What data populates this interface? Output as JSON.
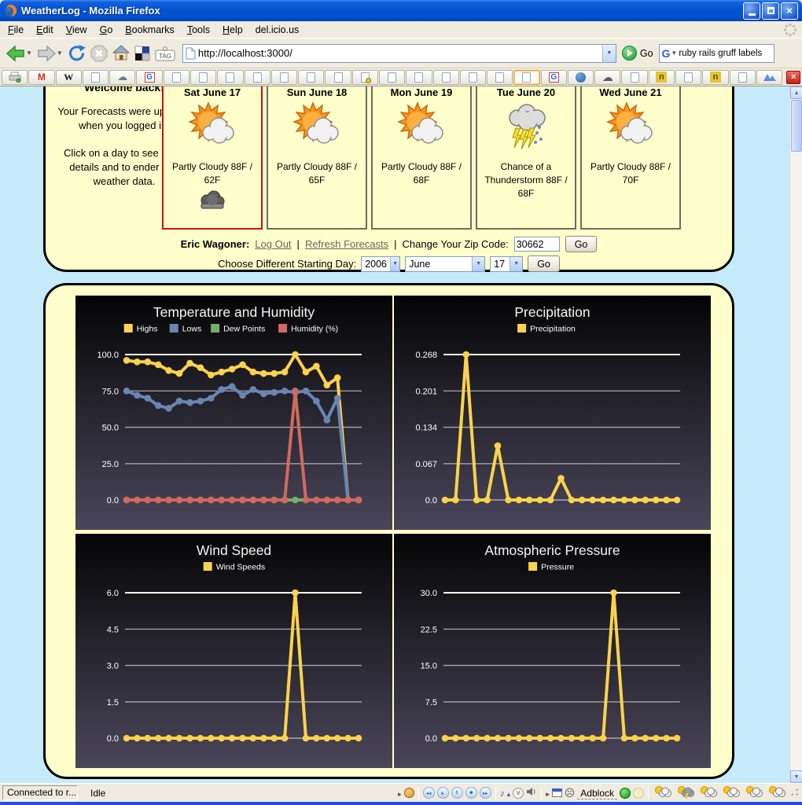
{
  "window": {
    "title": "WeatherLog - Mozilla Firefox"
  },
  "menu_bar": {
    "items": [
      "File",
      "Edit",
      "View",
      "Go",
      "Bookmarks",
      "Tools",
      "Help",
      "del.icio.us"
    ]
  },
  "nav_toolbar": {
    "url": "http://localhost:3000/",
    "go_label": "Go",
    "search_value": "ruby rails gruff labels",
    "tag_label": "TAG"
  },
  "bookmarks_bar": {
    "items": [
      "print",
      "gmail",
      "wikipedia",
      "page",
      "cloud",
      "google",
      "page",
      "page",
      "page",
      "page",
      "page",
      "page",
      "page",
      "page-key",
      "page",
      "page",
      "page",
      "page",
      "page",
      "page-active",
      "google",
      "drupal",
      "cloud-dark",
      "page",
      "n-badge",
      "page",
      "n-badge",
      "page",
      "mountains",
      "close"
    ]
  },
  "content": {
    "sidebar_note": {
      "heading": "Welcome back!",
      "p1": "Your Forecasts were updated when you logged in.",
      "p2": "Click on a day to see more details and to ender real weather data."
    },
    "forecast_cards": [
      {
        "day": "Sat June 17",
        "desc": "Partly Cloudy 88F / 62F",
        "icon": "partly-cloudy",
        "selected": true,
        "has_data_icon": true
      },
      {
        "day": "Sun June 18",
        "desc": "Partly Cloudy 88F / 65F",
        "icon": "partly-cloudy",
        "selected": false,
        "has_data_icon": false
      },
      {
        "day": "Mon June 19",
        "desc": "Partly Cloudy 88F / 68F",
        "icon": "partly-cloudy",
        "selected": false,
        "has_data_icon": false
      },
      {
        "day": "Tue June 20",
        "desc": "Chance of a Thunderstorm 88F / 68F",
        "icon": "thunderstorm",
        "selected": false,
        "has_data_icon": false
      },
      {
        "day": "Wed June 21",
        "desc": "Partly Cloudy 88F / 70F",
        "icon": "partly-cloudy",
        "selected": false,
        "has_data_icon": false
      }
    ],
    "user_row": {
      "name": "Eric Wagoner:",
      "logout": "Log Out",
      "sep": "|",
      "refresh": "Refresh Forecasts",
      "zip_label": "Change Your Zip Code:",
      "zip_value": "30662",
      "go": "Go"
    },
    "date_row": {
      "label": "Choose Different Starting Day:",
      "year": "2006",
      "month": "June",
      "day": "17",
      "go": "Go"
    }
  },
  "chart_data": [
    {
      "id": "temperature-humidity",
      "type": "line",
      "title": "Temperature and Humidity",
      "ylim": [
        0,
        100
      ],
      "yticks": [
        0,
        25,
        50,
        75,
        100
      ],
      "ytick_labels": [
        "0.0",
        "25.0",
        "50.0",
        "75.0",
        "100.0"
      ],
      "grid": true,
      "legend_position": "top",
      "series": [
        {
          "name": "Highs",
          "color": "#FBD24D",
          "values": [
            96,
            95,
            95,
            93,
            89,
            87,
            94,
            91,
            86,
            88,
            90,
            93,
            88,
            87,
            87,
            88,
            100,
            88,
            92,
            79,
            84,
            0,
            0
          ]
        },
        {
          "name": "Lows",
          "color": "#6886B4",
          "values": [
            75,
            72,
            70,
            65,
            63,
            68,
            67,
            68,
            70,
            76,
            78,
            72,
            76,
            73,
            74,
            75,
            74,
            75,
            68,
            55,
            70,
            0,
            0
          ]
        },
        {
          "name": "Dew Points",
          "color": "#72AE6E",
          "values": [
            0,
            0,
            0,
            0,
            0,
            0,
            0,
            0,
            0,
            0,
            0,
            0,
            0,
            0,
            0,
            0,
            0,
            0,
            0,
            0,
            0,
            0,
            0
          ]
        },
        {
          "name": "Humidity (%)",
          "color": "#D1695E",
          "values": [
            0,
            0,
            0,
            0,
            0,
            0,
            0,
            0,
            0,
            0,
            0,
            0,
            0,
            0,
            0,
            0,
            75,
            0,
            0,
            0,
            0,
            0,
            0
          ]
        }
      ]
    },
    {
      "id": "precipitation",
      "type": "line",
      "title": "Precipitation",
      "ylim": [
        0,
        0.268
      ],
      "yticks": [
        0,
        0.067,
        0.134,
        0.201,
        0.268
      ],
      "ytick_labels": [
        "0.0",
        "0.067",
        "0.134",
        "0.201",
        "0.268"
      ],
      "grid": true,
      "legend_position": "top",
      "series": [
        {
          "name": "Precipitation",
          "color": "#FBD24D",
          "values": [
            0,
            0,
            0.268,
            0,
            0,
            0.1,
            0,
            0,
            0,
            0,
            0,
            0.04,
            0,
            0,
            0,
            0,
            0,
            0,
            0,
            0,
            0,
            0,
            0
          ]
        }
      ]
    },
    {
      "id": "wind-speed",
      "type": "line",
      "title": "Wind Speed",
      "ylim": [
        0,
        6
      ],
      "yticks": [
        0,
        1.5,
        3,
        4.5,
        6
      ],
      "ytick_labels": [
        "0.0",
        "1.5",
        "3.0",
        "4.5",
        "6.0"
      ],
      "grid": true,
      "legend_position": "top",
      "series": [
        {
          "name": "Wind Speeds",
          "color": "#FBD24D",
          "values": [
            0,
            0,
            0,
            0,
            0,
            0,
            0,
            0,
            0,
            0,
            0,
            0,
            0,
            0,
            0,
            0,
            6,
            0,
            0,
            0,
            0,
            0,
            0
          ]
        }
      ]
    },
    {
      "id": "atmospheric-pressure",
      "type": "line",
      "title": "Atmospheric Pressure",
      "ylim": [
        0,
        30
      ],
      "yticks": [
        0,
        7.5,
        15,
        22.5,
        30
      ],
      "ytick_labels": [
        "0.0",
        "7.5",
        "15.0",
        "22.5",
        "30.0"
      ],
      "grid": true,
      "legend_position": "top",
      "series": [
        {
          "name": "Pressure",
          "color": "#FBD24D",
          "values": [
            0,
            0,
            0,
            0,
            0,
            0,
            0,
            0,
            0,
            0,
            0,
            0,
            0,
            0,
            0,
            0,
            30,
            0,
            0,
            0,
            0,
            0,
            0
          ]
        }
      ]
    }
  ],
  "status_bar": {
    "connected": "Connected to r...",
    "idle": "Idle",
    "adblock": "Adblock",
    "right_icons": [
      "expander-arrow",
      "foxytunes",
      "sep",
      "prev",
      "play",
      "pause",
      "stop",
      "next",
      "sep",
      "note",
      "eject",
      "collapse",
      "speaker",
      "sep",
      "expander-arrow",
      "window-icon",
      "sad-face",
      "adblock-label",
      "green-dot",
      "pale-dot",
      "sep",
      "wx-partly",
      "wx-thunder",
      "wx-partly",
      "wx-partly",
      "wx-partly",
      "wx-partly",
      "grip"
    ]
  },
  "colors": {
    "chart_bg_top": "#050505",
    "chart_bg_bottom": "#4A465A",
    "panel_bg": "#FFFFCC",
    "page_bg": "#C5EBFA",
    "selected_card_border": "#CC1111"
  }
}
